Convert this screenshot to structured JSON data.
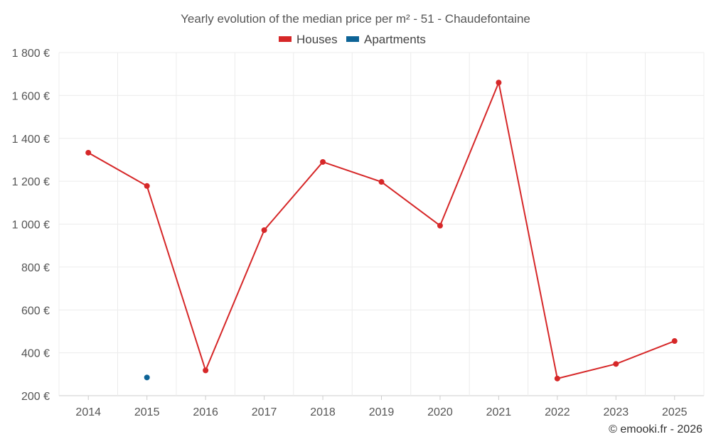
{
  "chart_data": {
    "type": "line",
    "title": "Yearly evolution of the median price per m² - 51 - Chaudefontaine",
    "categories": [
      "2014",
      "2015",
      "2016",
      "2017",
      "2018",
      "2019",
      "2020",
      "2021",
      "2022",
      "2023",
      "2025"
    ],
    "y_ticks": [
      "200 €",
      "400 €",
      "600 €",
      "800 €",
      "1 000 €",
      "1 200 €",
      "1 400 €",
      "1 600 €",
      "1 800 €"
    ],
    "ylim": [
      200,
      1800
    ],
    "legend_position": "top-center",
    "series": [
      {
        "name": "Houses",
        "color": "#d62728",
        "values": [
          1333,
          1178,
          318,
          972,
          1290,
          1197,
          993,
          1660,
          280,
          348,
          455
        ]
      },
      {
        "name": "Apartments",
        "color": "#0d6396",
        "values": [
          null,
          285,
          null,
          null,
          null,
          null,
          null,
          null,
          null,
          null,
          null
        ]
      }
    ],
    "credit": "© emooki.fr - 2026"
  }
}
